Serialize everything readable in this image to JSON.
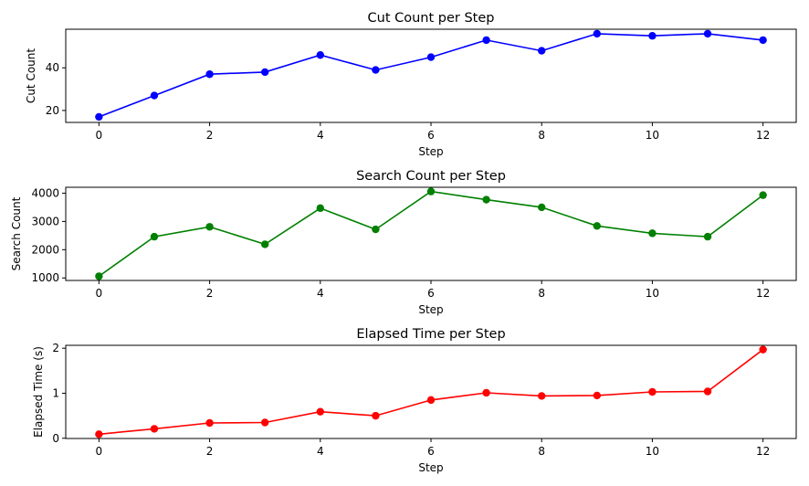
{
  "chart_data": [
    {
      "type": "line",
      "title": "Cut Count per Step",
      "xlabel": "Step",
      "ylabel": "Cut Count",
      "color": "#0000ff",
      "marker": "circle",
      "x": [
        0,
        1,
        2,
        3,
        4,
        5,
        6,
        7,
        8,
        9,
        10,
        11,
        12
      ],
      "y": [
        17,
        27,
        37,
        38,
        46,
        39,
        45,
        53,
        48,
        56,
        55,
        56,
        53
      ],
      "xlim": [
        -0.6,
        12.6
      ],
      "ylim": [
        14.4,
        58.1
      ],
      "xticks": [
        0,
        2,
        4,
        6,
        8,
        10,
        12
      ],
      "yticks": [
        20,
        40
      ],
      "grid": false,
      "legend": false
    },
    {
      "type": "line",
      "title": "Search Count per Step",
      "xlabel": "Step",
      "ylabel": "Search Count",
      "color": "#008000",
      "marker": "circle",
      "x": [
        0,
        1,
        2,
        3,
        4,
        5,
        6,
        7,
        8,
        9,
        10,
        11,
        12
      ],
      "y": [
        1060,
        2460,
        2810,
        2190,
        3470,
        2720,
        4060,
        3770,
        3500,
        2840,
        2580,
        2460,
        3930
      ],
      "xlim": [
        -0.6,
        12.6
      ],
      "ylim": [
        911,
        4209
      ],
      "xticks": [
        0,
        2,
        4,
        6,
        8,
        10,
        12
      ],
      "yticks": [
        1000,
        2000,
        3000,
        4000
      ],
      "grid": false,
      "legend": false
    },
    {
      "type": "line",
      "title": "Elapsed Time per Step",
      "xlabel": "Step",
      "ylabel": "Elapsed Time (s)",
      "color": "#ff0000",
      "marker": "circle",
      "x": [
        0,
        1,
        2,
        3,
        4,
        5,
        6,
        7,
        8,
        9,
        10,
        11,
        12
      ],
      "y": [
        0.09,
        0.21,
        0.34,
        0.35,
        0.59,
        0.5,
        0.85,
        1.01,
        0.94,
        0.95,
        1.03,
        1.04,
        1.97
      ],
      "xlim": [
        -0.6,
        12.6
      ],
      "ylim": [
        -0.005,
        2.065
      ],
      "xticks": [
        0,
        2,
        4,
        6,
        8,
        10,
        12
      ],
      "yticks": [
        0,
        1,
        2
      ],
      "grid": false,
      "legend": false
    }
  ]
}
